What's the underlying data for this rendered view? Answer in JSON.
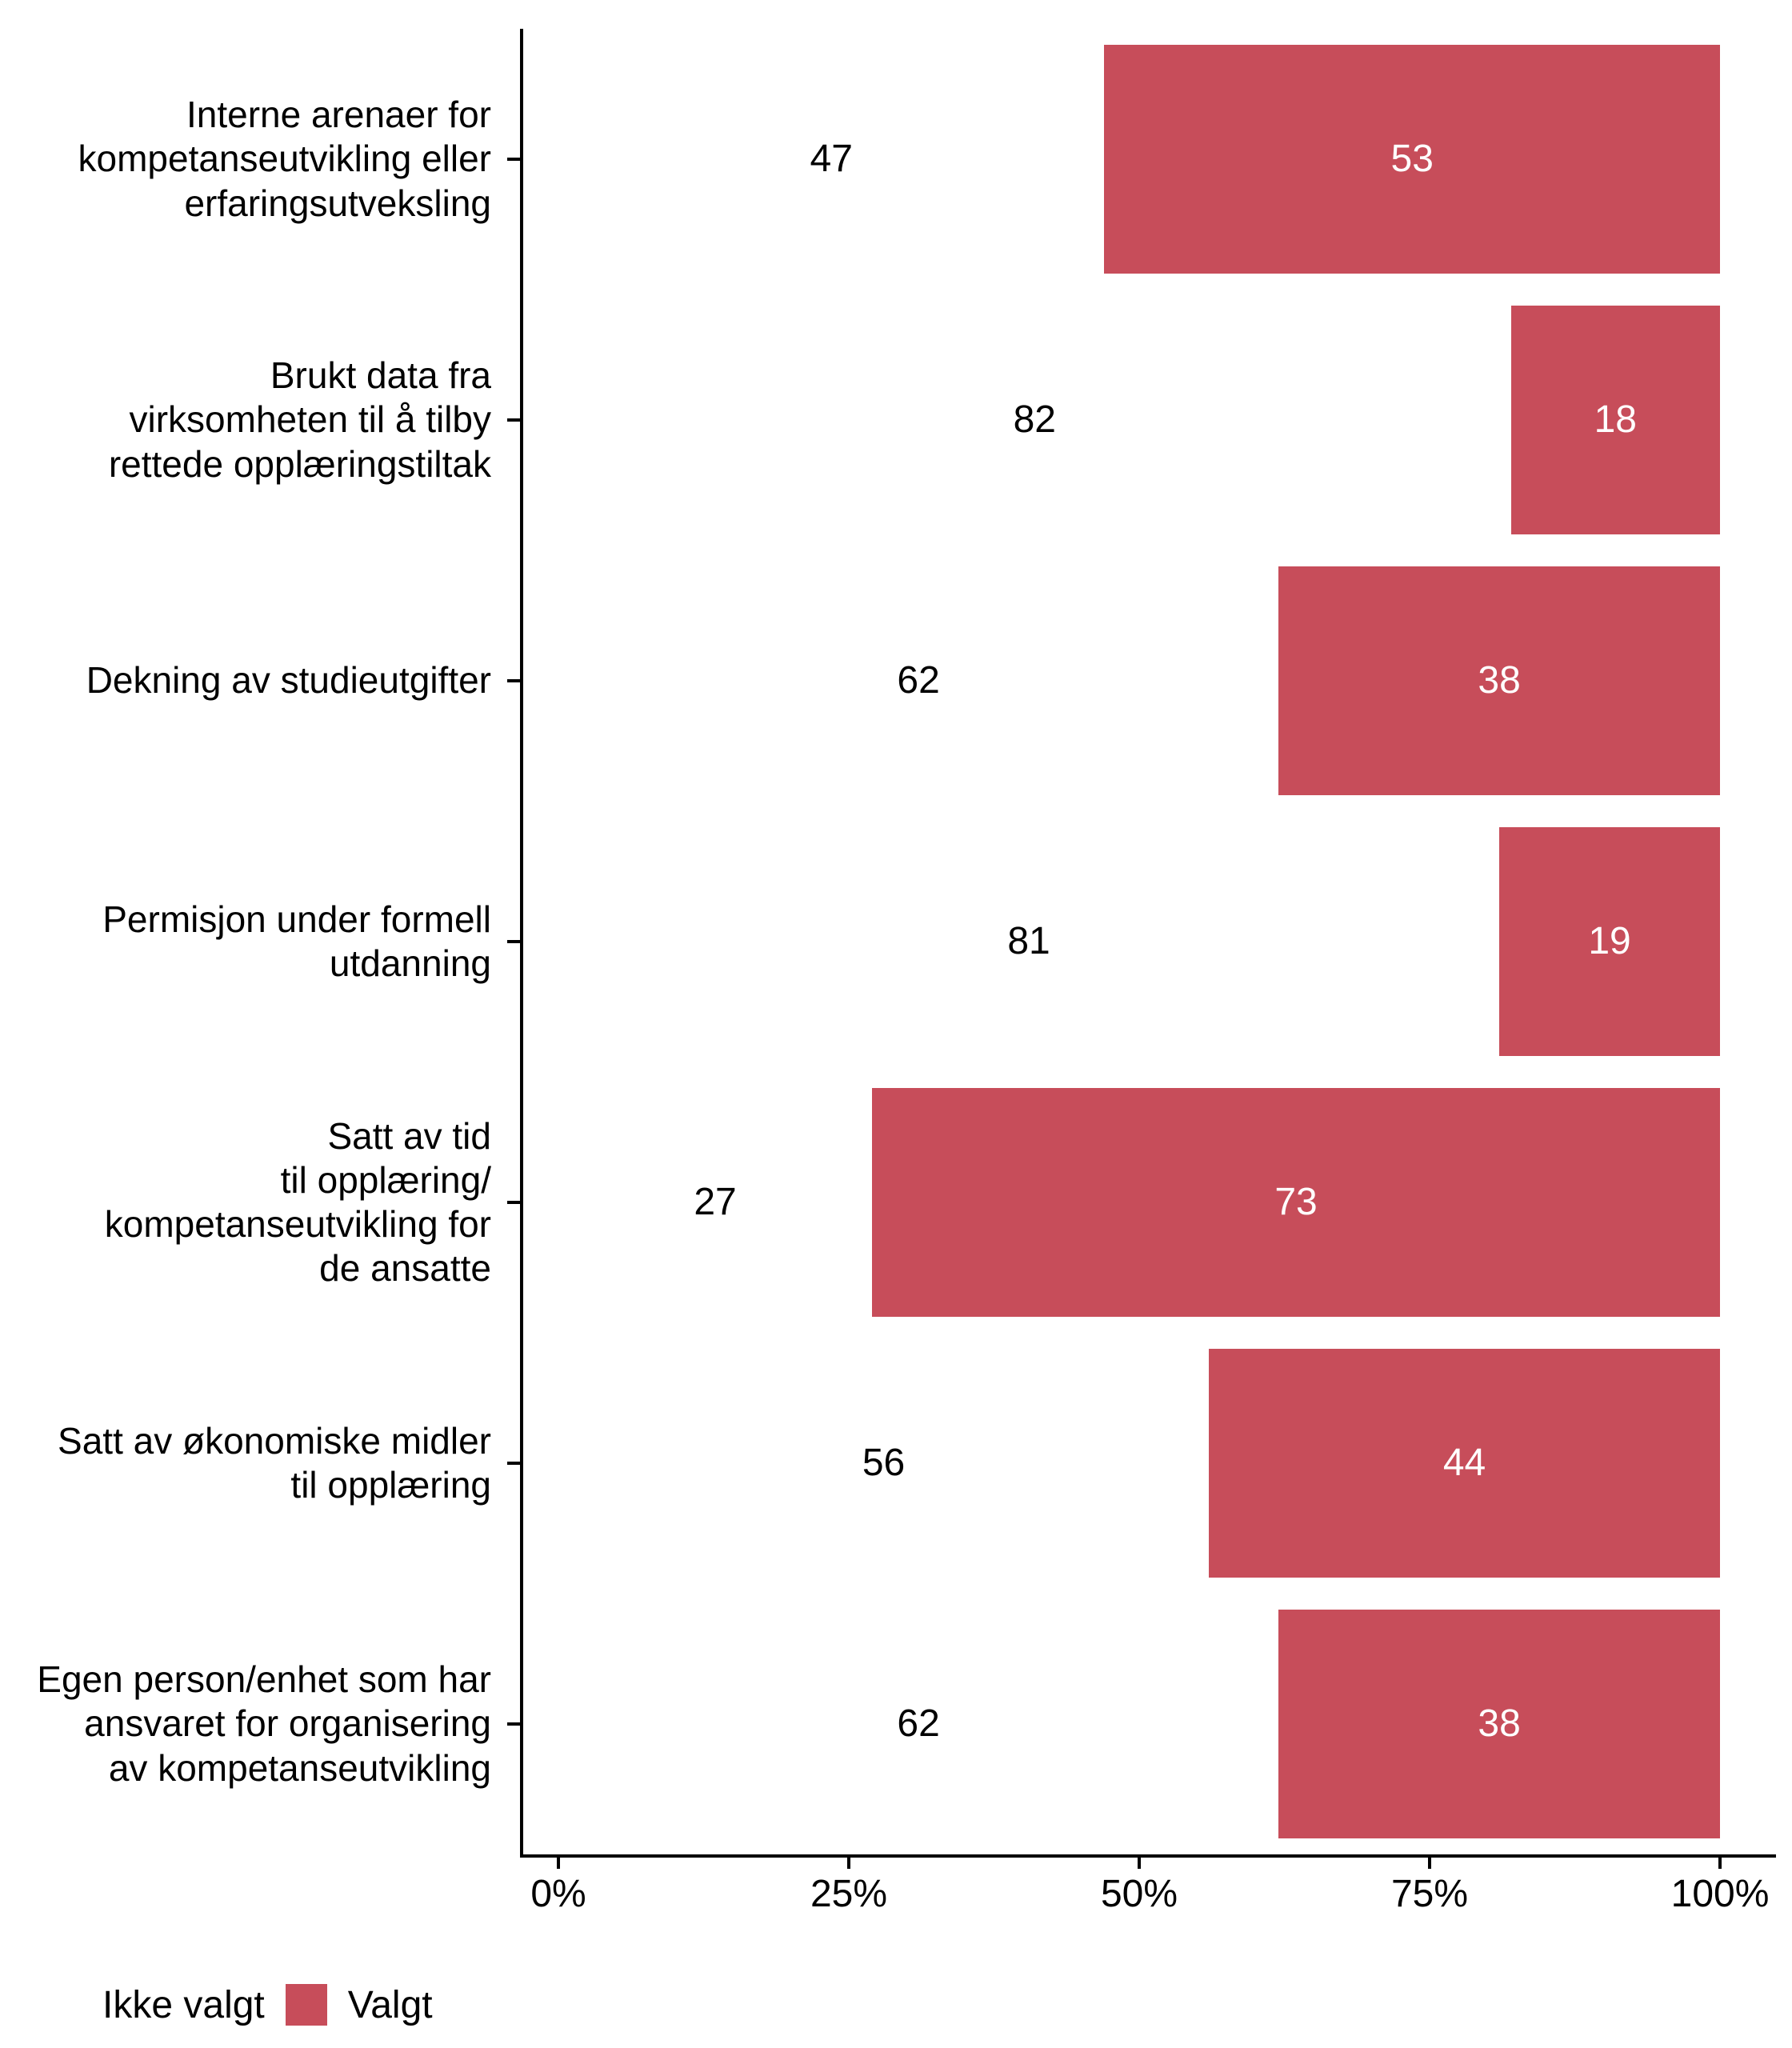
{
  "chart_data": {
    "type": "bar",
    "orientation": "horizontal",
    "stacked": true,
    "unit": "%",
    "categories": [
      "Interne arenaer for\nkompetanseutvikling eller\nerfaringsutveksling",
      "Brukt data fra\nvirksomheten til å tilby\nrettede opplæringstiltak",
      "Dekning av studieutgifter",
      "Permisjon under formell\nutdanning",
      "Satt av tid\ntil opplæring/\nkompetanseutvikling for\nde ansatte",
      "Satt av økonomiske midler\ntil opplæring",
      "Egen person/enhet som har\nansvaret for organisering\nav kompetanseutvikling"
    ],
    "series": [
      {
        "name": "Ikke valgt",
        "color": "#FFFFFF",
        "label_color": "#000000",
        "values": [
          47,
          82,
          62,
          81,
          27,
          56,
          62
        ]
      },
      {
        "name": "Valgt",
        "color": "#C74D5A",
        "label_color": "#FFFFFF",
        "values": [
          53,
          18,
          38,
          19,
          73,
          44,
          38
        ]
      }
    ],
    "x_axis": {
      "range": [
        0,
        100
      ],
      "tick_values": [
        0,
        25,
        50,
        75,
        100
      ],
      "tick_labels": [
        "0%",
        "25%",
        "50%",
        "75%",
        "100%"
      ]
    },
    "legend": {
      "position": "bottom-left",
      "items": [
        {
          "label": "Ikke valgt",
          "color": "#FFFFFF"
        },
        {
          "label": "Valgt",
          "color": "#C74D5A"
        }
      ]
    },
    "colors": {
      "axis": "#000000",
      "background": "#FFFFFF",
      "bar": "#C74D5A"
    }
  }
}
